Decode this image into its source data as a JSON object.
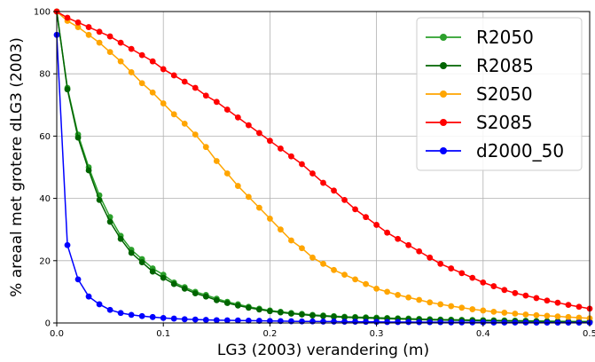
{
  "chart_data": {
    "type": "line",
    "xlabel": "LG3 (2003) verandering (m)",
    "ylabel": "% areaal met grotere dLG3 (2003)",
    "xlim": [
      0.0,
      0.5
    ],
    "ylim": [
      0,
      100
    ],
    "xticks": [
      "0.0",
      "0.1",
      "0.2",
      "0.3",
      "0.4",
      "0.5"
    ],
    "yticks": [
      "0",
      "20",
      "40",
      "60",
      "80",
      "100"
    ],
    "grid": true,
    "legend_position": "top-right",
    "x": [
      0.0,
      0.01,
      0.02,
      0.03,
      0.04,
      0.05,
      0.06,
      0.07,
      0.08,
      0.09,
      0.1,
      0.11,
      0.12,
      0.13,
      0.14,
      0.15,
      0.16,
      0.17,
      0.18,
      0.19,
      0.2,
      0.21,
      0.22,
      0.23,
      0.24,
      0.25,
      0.26,
      0.27,
      0.28,
      0.29,
      0.3,
      0.31,
      0.32,
      0.33,
      0.34,
      0.35,
      0.36,
      0.37,
      0.38,
      0.39,
      0.4,
      0.41,
      0.42,
      0.43,
      0.44,
      0.45,
      0.46,
      0.47,
      0.48,
      0.49,
      0.5
    ],
    "series": [
      {
        "name": "R2050",
        "color": "#2ca02c",
        "values": [
          100,
          75.5,
          60.5,
          50.0,
          41.0,
          34.0,
          28.0,
          23.5,
          20.5,
          17.5,
          15.5,
          13.0,
          11.5,
          10.0,
          9.0,
          7.8,
          6.8,
          6.0,
          5.2,
          4.6,
          4.0,
          3.6,
          3.2,
          2.9,
          2.6,
          2.4,
          2.2,
          2.0,
          1.9,
          1.8,
          1.7,
          1.6,
          1.5,
          1.4,
          1.3,
          1.2,
          1.1,
          1.05,
          1.0,
          0.95,
          0.9,
          0.85,
          0.8,
          0.75,
          0.7,
          0.65,
          0.6,
          0.55,
          0.5,
          0.5,
          0.5
        ]
      },
      {
        "name": "R2085",
        "color": "#006400",
        "values": [
          100,
          75.0,
          59.5,
          49.0,
          39.5,
          32.5,
          27.0,
          22.5,
          19.5,
          16.5,
          14.5,
          12.5,
          11.0,
          9.5,
          8.5,
          7.3,
          6.4,
          5.6,
          4.9,
          4.3,
          3.8,
          3.4,
          3.0,
          2.7,
          2.4,
          2.2,
          2.0,
          1.8,
          1.7,
          1.6,
          1.5,
          1.4,
          1.3,
          1.2,
          1.1,
          1.0,
          0.95,
          0.9,
          0.85,
          0.8,
          0.75,
          0.7,
          0.65,
          0.6,
          0.55,
          0.5,
          0.45,
          0.4,
          0.4,
          0.35,
          0.35
        ]
      },
      {
        "name": "S2050",
        "color": "#ffa500",
        "values": [
          100,
          97.0,
          95.0,
          92.5,
          90.0,
          87.0,
          84.0,
          80.5,
          77.0,
          74.0,
          70.5,
          67.0,
          64.0,
          60.5,
          56.5,
          52.0,
          48.0,
          44.0,
          40.5,
          37.0,
          33.5,
          30.0,
          26.5,
          24.0,
          21.0,
          19.0,
          17.0,
          15.5,
          14.0,
          12.5,
          11.0,
          10.0,
          9.0,
          8.2,
          7.4,
          6.6,
          6.0,
          5.4,
          4.9,
          4.4,
          4.0,
          3.6,
          3.3,
          3.0,
          2.7,
          2.5,
          2.3,
          2.1,
          1.9,
          1.7,
          1.5
        ]
      },
      {
        "name": "S2085",
        "color": "#ff0000",
        "values": [
          100,
          98.0,
          96.5,
          95.0,
          93.5,
          92.0,
          90.0,
          88.0,
          86.0,
          84.0,
          81.5,
          79.5,
          77.5,
          75.5,
          73.0,
          71.0,
          68.5,
          66.0,
          63.5,
          61.0,
          58.5,
          56.0,
          53.5,
          51.0,
          48.0,
          45.0,
          42.5,
          39.5,
          36.5,
          34.0,
          31.5,
          29.0,
          27.0,
          25.0,
          23.0,
          21.0,
          19.0,
          17.5,
          16.0,
          14.5,
          13.0,
          11.8,
          10.6,
          9.6,
          8.8,
          8.0,
          7.2,
          6.5,
          5.8,
          5.2,
          4.6
        ]
      },
      {
        "name": "d2000_50",
        "color": "#0000ff",
        "values": [
          92.5,
          25.0,
          14.0,
          8.5,
          6.0,
          4.2,
          3.2,
          2.6,
          2.2,
          1.9,
          1.6,
          1.4,
          1.2,
          1.1,
          1.0,
          0.9,
          0.85,
          0.8,
          0.75,
          0.7,
          0.65,
          0.6,
          0.55,
          0.5,
          0.5,
          0.45,
          0.45,
          0.4,
          0.4,
          0.35,
          0.35,
          0.3,
          0.3,
          0.3,
          0.25,
          0.25,
          0.25,
          0.2,
          0.2,
          0.2,
          0.2,
          0.15,
          0.15,
          0.15,
          0.15,
          0.1,
          0.1,
          0.1,
          0.1,
          0.1,
          0.1
        ]
      }
    ]
  }
}
